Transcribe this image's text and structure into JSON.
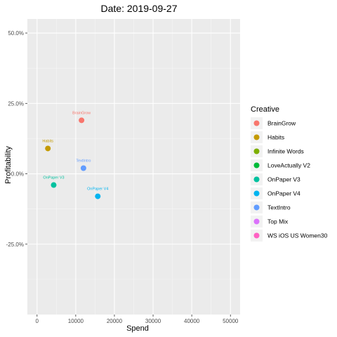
{
  "chart_data": {
    "type": "scatter",
    "title": "Date: 2019-09-27",
    "xlabel": "Spend",
    "ylabel": "Profitability",
    "xlim": [
      -2500,
      52500
    ],
    "ylim": [
      -0.5,
      0.55
    ],
    "x_ticks": [
      0,
      10000,
      20000,
      30000,
      40000,
      50000
    ],
    "x_tick_labels": [
      "0",
      "10000",
      "20000",
      "30000",
      "40000",
      "50000"
    ],
    "y_ticks": [
      0.5,
      0.25,
      0,
      -0.25
    ],
    "y_tick_labels": [
      "50.0%",
      "25.0%",
      "0.0%",
      "-25.0%"
    ],
    "grid": true,
    "legend": {
      "title": "Creative",
      "position": "right",
      "entries": [
        {
          "name": "BrainGrow",
          "color": "#F8766D"
        },
        {
          "name": "Habits",
          "color": "#C49A00"
        },
        {
          "name": "Infinite Words",
          "color": "#7CAE00"
        },
        {
          "name": "LoveActually V2",
          "color": "#00BA38"
        },
        {
          "name": "OnPaper V3",
          "color": "#00C19F"
        },
        {
          "name": "OnPaper V4",
          "color": "#00B4F0"
        },
        {
          "name": "TextIntro",
          "color": "#619CFF"
        },
        {
          "name": "Top Mix",
          "color": "#DB72FB"
        },
        {
          "name": "WS iOS US Women30",
          "color": "#FF61C3"
        }
      ]
    },
    "points": [
      {
        "label": "BrainGrow",
        "x": 11500,
        "y": 0.19,
        "color": "#F8766D"
      },
      {
        "label": "Habits",
        "x": 2800,
        "y": 0.09,
        "color": "#C49A00"
      },
      {
        "label": "TextIntro",
        "x": 12000,
        "y": 0.02,
        "color": "#619CFF"
      },
      {
        "label": "OnPaper V3",
        "x": 4300,
        "y": -0.04,
        "color": "#00C19F"
      },
      {
        "label": "OnPaper V4",
        "x": 15700,
        "y": -0.08,
        "color": "#00B4F0"
      }
    ]
  }
}
